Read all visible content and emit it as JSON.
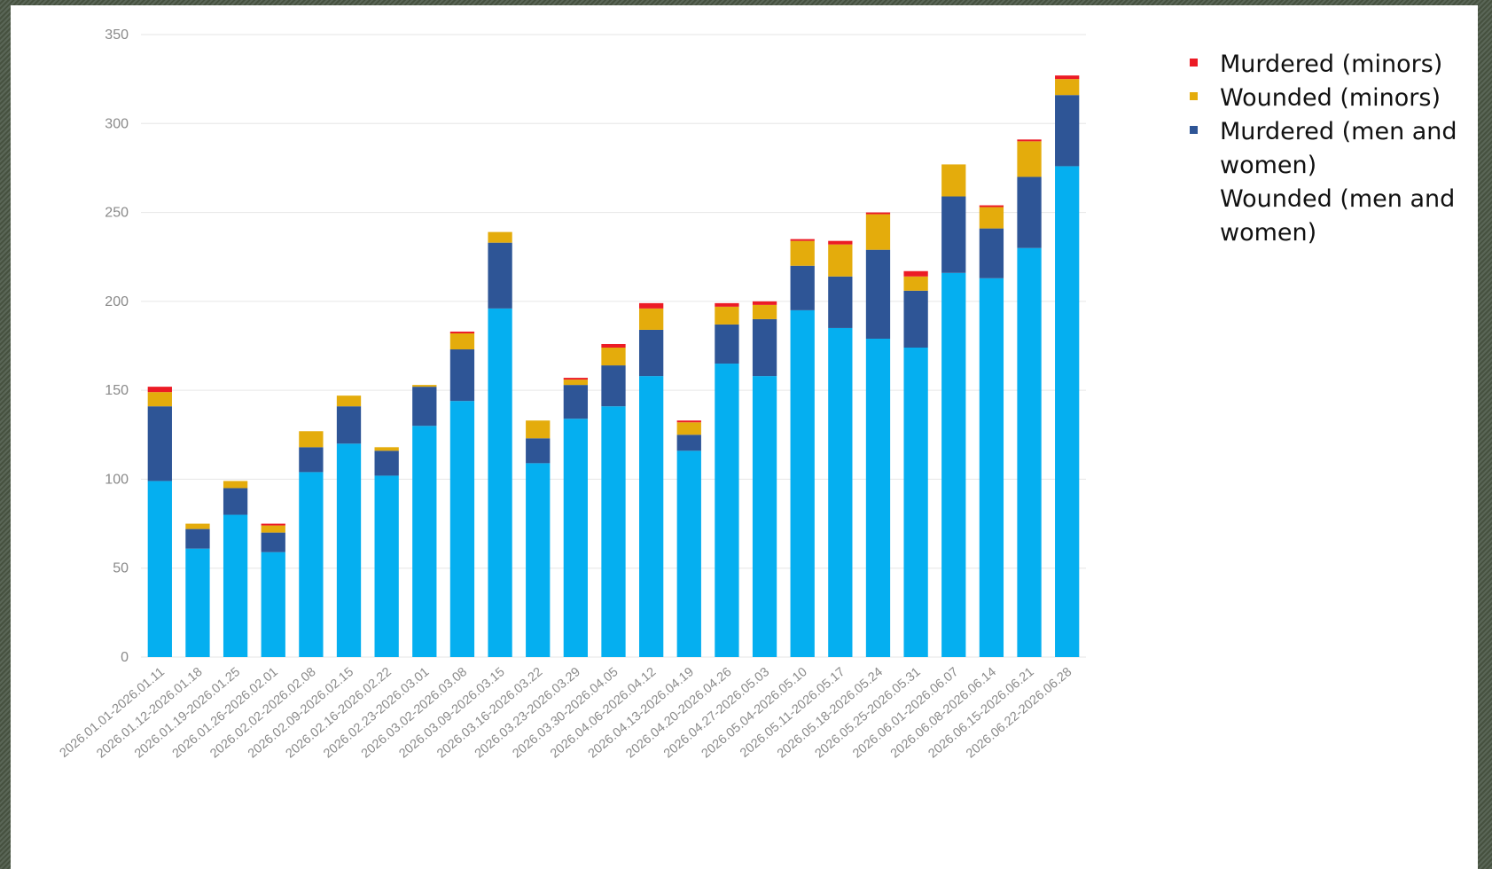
{
  "chart_data": {
    "type": "bar",
    "stacked": true,
    "ylim": [
      0,
      350
    ],
    "yticks": [
      0,
      50,
      100,
      150,
      200,
      250,
      300,
      350
    ],
    "grid": true,
    "legend_position": "right",
    "categories": [
      "2026.01.01-2026.01.11",
      "2026.01.12-2026.01.18",
      "2026.01.19-2026.01.25",
      "2026.01.26-2026.02.01",
      "2026.02.02-2026.02.08",
      "2026.02.09-2026.02.15",
      "2026.02.16-2026.02.22",
      "2026.02.23-2026.03.01",
      "2026.03.02-2026.03.08",
      "2026.03.09-2026.03.15",
      "2026.03.16-2026.03.22",
      "2026.03.23-2026.03.29",
      "2026.03.30-2026.04.05",
      "2026.04.06-2026.04.12",
      "2026.04.13-2026.04.19",
      "2026.04.20-2026.04.26",
      "2026.04.27-2026.05.03",
      "2026.05.04-2026.05.10",
      "2026.05.11-2026.05.17",
      "2026.05.18-2026.05.24",
      "2026.05.25-2026.05.31",
      "2026.06.01-2026.06.07",
      "2026.06.08-2026.06.14",
      "2026.06.15-2026.06.21",
      "2026.06.22-2026.06.28"
    ],
    "series": [
      {
        "name": "Wounded (men and women)",
        "color": "#05aff0",
        "values": [
          99,
          61,
          80,
          59,
          104,
          120,
          102,
          130,
          144,
          196,
          109,
          134,
          141,
          158,
          116,
          165,
          158,
          195,
          185,
          179,
          174,
          216,
          213,
          230,
          276
        ]
      },
      {
        "name": "Murdered (men and women)",
        "color": "#2e5596",
        "values": [
          42,
          11,
          15,
          11,
          14,
          21,
          14,
          22,
          29,
          37,
          14,
          19,
          23,
          26,
          9,
          22,
          32,
          25,
          29,
          50,
          32,
          43,
          28,
          40,
          40
        ]
      },
      {
        "name": "Wounded (minors)",
        "color": "#e4ac0c",
        "values": [
          8,
          3,
          4,
          4,
          9,
          6,
          2,
          1,
          9,
          6,
          10,
          3,
          10,
          12,
          7,
          10,
          8,
          14,
          18,
          20,
          8,
          18,
          12,
          20,
          9
        ]
      },
      {
        "name": "Murdered (minors)",
        "color": "#ec1b25",
        "values": [
          3,
          0,
          0,
          1,
          0,
          0,
          0,
          0,
          1,
          0,
          0,
          1,
          2,
          3,
          1,
          2,
          2,
          1,
          2,
          1,
          3,
          0,
          1,
          1,
          2
        ]
      }
    ],
    "legend": [
      {
        "label": "Murdered (minors)",
        "color": "#ec1b25"
      },
      {
        "label": "Wounded (minors)",
        "color": "#e4ac0c"
      },
      {
        "label": "Murdered (men and women)",
        "color": "#2e5596"
      },
      {
        "label": "Wounded (men and women)",
        "color": "#05aff0"
      }
    ]
  }
}
